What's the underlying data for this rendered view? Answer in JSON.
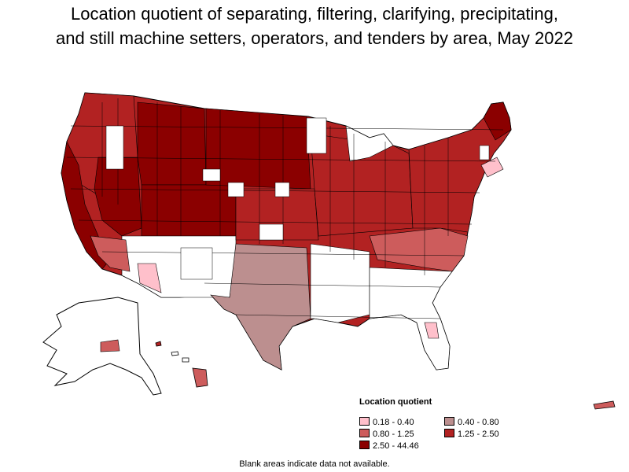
{
  "title_line1": "Location quotient of separating, filtering, clarifying, precipitating,",
  "title_line2": "and still machine setters, operators, and tenders by area, May 2022",
  "legend": {
    "title": "Location quotient",
    "items": [
      {
        "label": "0.18 - 0.40",
        "color": "#ffc0cb"
      },
      {
        "label": "0.40 - 0.80",
        "color": "#bc8f8f"
      },
      {
        "label": "0.80 - 1.25",
        "color": "#cd5c5c"
      },
      {
        "label": "1.25 - 2.50",
        "color": "#b22222"
      },
      {
        "label": "2.50 - 44.46",
        "color": "#8b0000"
      }
    ]
  },
  "note": "Blank areas indicate data not available.",
  "colors": {
    "class1": "#ffc0cb",
    "class2": "#bc8f8f",
    "class3": "#cd5c5c",
    "class4": "#b22222",
    "class5": "#8b0000",
    "blank": "#ffffff",
    "border": "#000000"
  }
}
